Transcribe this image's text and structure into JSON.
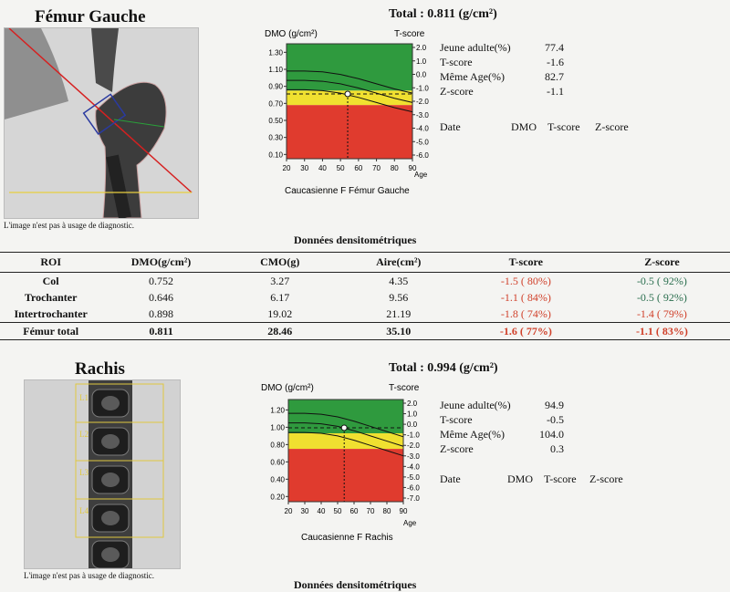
{
  "femur": {
    "title": "Fémur Gauche",
    "total": "Total :  0.811 (g/cm²)",
    "caption": "L'image n'est pas à usage de diagnostic.",
    "chart_caption": "Caucasienne F Fémur Gauche",
    "stats": [
      {
        "label": "Jeune adulte(%)",
        "value": "77.4"
      },
      {
        "label": "T-score",
        "value": "-1.6"
      },
      {
        "label": "Même Age(%)",
        "value": "82.7"
      },
      {
        "label": "Z-score",
        "value": "-1.1"
      }
    ],
    "date_header": {
      "date": "Date",
      "dmo": "DMO",
      "tscore": "T-score",
      "zscore": "Z-score"
    }
  },
  "femur_table": {
    "title": "Données densitométriques",
    "headers": [
      "ROI",
      "DMO(g/cm²)",
      "CMO(g)",
      "Aire(cm²)",
      "T-score",
      "Z-score"
    ],
    "rows": [
      [
        "Col",
        "0.752",
        "3.27",
        "4.35",
        "-1.5 ( 80%)",
        "-0.5 ( 92%)"
      ],
      [
        "Trochanter",
        "0.646",
        "6.17",
        "9.56",
        "-1.1 ( 84%)",
        "-0.5 ( 92%)"
      ],
      [
        "Intertrochanter",
        "0.898",
        "19.02",
        "21.19",
        "-1.8 ( 74%)",
        "-1.4 ( 79%)"
      ]
    ],
    "total_row": [
      "Fémur total",
      "0.811",
      "28.46",
      "35.10",
      "-1.6 ( 77%)",
      "-1.1 ( 83%)"
    ]
  },
  "rachis": {
    "title": "Rachis",
    "total": "Total :  0.994 (g/cm²)",
    "caption": "L'image n'est pas à usage de diagnostic.",
    "chart_caption": "Caucasienne F Rachis",
    "stats": [
      {
        "label": "Jeune adulte(%)",
        "value": "94.9"
      },
      {
        "label": "T-score",
        "value": "-0.5"
      },
      {
        "label": "Même Age(%)",
        "value": "104.0"
      },
      {
        "label": "Z-score",
        "value": "0.3"
      }
    ],
    "date_header": {
      "date": "Date",
      "dmo": "DMO",
      "tscore": "T-score",
      "zscore": "Z-score"
    },
    "vertebra_labels": [
      "L1",
      "L2",
      "L3",
      "L4"
    ]
  },
  "rachis_table": {
    "title": "Données densitométriques"
  },
  "chart_data": [
    {
      "type": "line",
      "xlabel": "Age",
      "ylabel": "DMO (g/cm²)",
      "y2label": "T-score",
      "x_ticks": [
        "20",
        "30",
        "40",
        "50",
        "60",
        "70",
        "80",
        "90"
      ],
      "y_ticks": [
        "1.30",
        "1.10",
        "0.90",
        "0.70",
        "0.50",
        "0.30",
        "0.10"
      ],
      "y2_ticks": [
        "2.0",
        "1.0",
        "0.0",
        "-1.0",
        "-2.0",
        "-3.0",
        "-4.0",
        "-5.0",
        "-6.0"
      ],
      "xlim": [
        20,
        90
      ],
      "ylim": [
        0.05,
        1.4
      ],
      "reference_lines": [
        {
          "x": [
            20,
            30,
            40,
            50,
            60,
            70,
            80,
            90
          ],
          "y": [
            1.08,
            1.08,
            1.07,
            1.04,
            0.99,
            0.93,
            0.87,
            0.82
          ]
        },
        {
          "x": [
            20,
            30,
            40,
            50,
            60,
            70,
            80,
            90
          ],
          "y": [
            0.97,
            0.97,
            0.96,
            0.93,
            0.88,
            0.82,
            0.76,
            0.71
          ]
        },
        {
          "x": [
            20,
            30,
            40,
            50,
            60,
            70,
            80,
            90
          ],
          "y": [
            0.86,
            0.86,
            0.85,
            0.82,
            0.77,
            0.71,
            0.65,
            0.6
          ]
        }
      ],
      "t_score_zero_dmo": 0.96,
      "osteopenia_dmo": 0.85,
      "osteoporosis_dmo": 0.68,
      "patient": {
        "age": 54,
        "dmo": 0.811
      }
    },
    {
      "type": "line",
      "xlabel": "Age",
      "ylabel": "DMO (g/cm²)",
      "y2label": "T-score",
      "x_ticks": [
        "20",
        "30",
        "40",
        "50",
        "60",
        "70",
        "80",
        "90"
      ],
      "y_ticks": [
        "1.20",
        "1.00",
        "0.80",
        "0.60",
        "0.40",
        "0.20"
      ],
      "y2_ticks": [
        "2.0",
        "1.0",
        "0.0",
        "-1.0",
        "-2.0",
        "-3.0",
        "-4.0",
        "-5.0",
        "-6.0",
        "-7.0"
      ],
      "xlim": [
        20,
        90
      ],
      "ylim": [
        0.14,
        1.32
      ],
      "reference_lines": [
        {
          "x": [
            20,
            30,
            40,
            50,
            60,
            70,
            80,
            90
          ],
          "y": [
            1.16,
            1.16,
            1.15,
            1.12,
            1.07,
            1.01,
            0.95,
            0.89
          ]
        },
        {
          "x": [
            20,
            30,
            40,
            50,
            60,
            70,
            80,
            90
          ],
          "y": [
            1.05,
            1.05,
            1.04,
            1.01,
            0.96,
            0.9,
            0.84,
            0.78
          ]
        },
        {
          "x": [
            20,
            30,
            40,
            50,
            60,
            70,
            80,
            90
          ],
          "y": [
            0.94,
            0.94,
            0.93,
            0.9,
            0.85,
            0.79,
            0.73,
            0.67
          ]
        }
      ],
      "t_score_zero_dmo": 1.05,
      "osteopenia_dmo": 0.93,
      "osteoporosis_dmo": 0.75,
      "patient": {
        "age": 54,
        "dmo": 0.994
      }
    }
  ]
}
